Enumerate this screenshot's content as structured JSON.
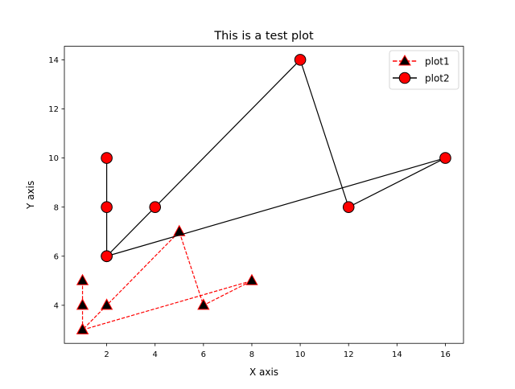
{
  "chart_data": {
    "type": "line",
    "title": "This is a test plot",
    "xlabel": "X axis",
    "ylabel": "Y axis",
    "xlim": [
      0.25,
      16.75
    ],
    "ylim": [
      2.45,
      14.55
    ],
    "xticks": [
      2,
      4,
      6,
      8,
      10,
      12,
      14,
      16
    ],
    "yticks": [
      4,
      6,
      8,
      10,
      12,
      14
    ],
    "grid": false,
    "legend_position": "top-right",
    "series": [
      {
        "name": "plot1",
        "color": "#ff0000",
        "linestyle": "dashed",
        "marker": "triangle",
        "marker_face": "#000000",
        "marker_edge": "#ff0000",
        "x": [
          1,
          1,
          1,
          2,
          5,
          6,
          8,
          1
        ],
        "y": [
          5,
          4,
          3,
          4,
          7,
          4,
          5,
          3
        ]
      },
      {
        "name": "plot2",
        "color": "#000000",
        "linestyle": "solid",
        "marker": "circle",
        "marker_face": "#ff0000",
        "marker_edge": "#000000",
        "x": [
          2,
          2,
          2,
          4,
          10,
          12,
          16,
          2
        ],
        "y": [
          10,
          8,
          6,
          8,
          14,
          8,
          10,
          6
        ]
      }
    ]
  }
}
